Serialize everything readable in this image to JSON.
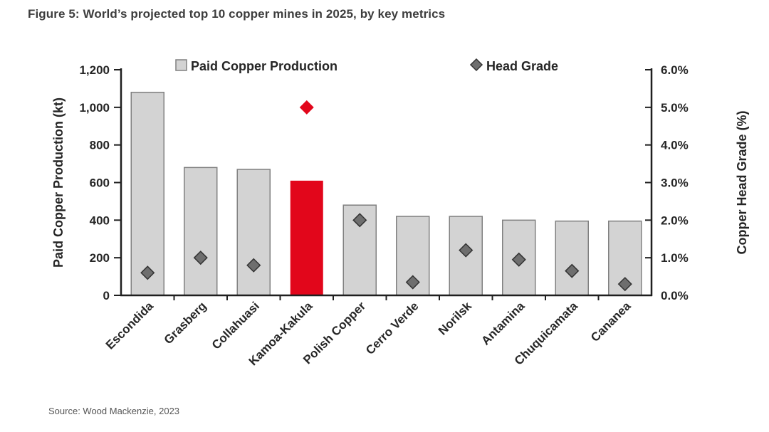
{
  "figure": {
    "title": "Figure 5: World’s projected top 10 copper mines in 2025, by key metrics",
    "source": "Source: Wood Mackenzie, 2023"
  },
  "legend": [
    {
      "label": "Paid Copper Production",
      "marker": "square-icon"
    },
    {
      "label": "Head Grade",
      "marker": "diamond-icon"
    }
  ],
  "colors": {
    "bar_fill": "#d3d3d3",
    "bar_stroke": "#808080",
    "highlight": "#e2061b",
    "marker_fill": "#6e6e6e",
    "marker_stroke": "#333333",
    "axis_line": "#1f1f1f",
    "text": "#262626"
  },
  "chart_data": {
    "type": "bar",
    "subtype": "bar+scatter combo, dual axis",
    "categories": [
      "Escondida",
      "Grasberg",
      "Collahuasi",
      "Kamoa-Kakula",
      "Polish Copper",
      "Cerro Verde",
      "Norilsk",
      "Antamina",
      "Chuquicamata",
      "Cananea"
    ],
    "series": [
      {
        "name": "Paid Copper Production",
        "type": "bar",
        "axis": "left",
        "unit": "kt",
        "values": [
          1080,
          680,
          670,
          610,
          480,
          420,
          420,
          400,
          395,
          395
        ]
      },
      {
        "name": "Head Grade",
        "type": "scatter",
        "marker": "diamond",
        "axis": "right",
        "unit": "%",
        "values": [
          0.6,
          1.0,
          0.8,
          5.0,
          2.0,
          0.35,
          1.2,
          0.95,
          0.65,
          0.3
        ]
      }
    ],
    "highlight": {
      "category": "Kamoa-Kakula",
      "index": 3,
      "color": "#e2061b"
    },
    "left_axis": {
      "label": "Paid Copper Production (kt)",
      "min": 0,
      "max": 1200,
      "step": 200,
      "ticks": [
        "0",
        "200",
        "400",
        "600",
        "800",
        "1,000",
        "1,200"
      ]
    },
    "right_axis": {
      "label": "Copper Head Grade (%)",
      "min": 0,
      "max": 6,
      "step": 1,
      "ticks": [
        "0.0%",
        "1.0%",
        "2.0%",
        "3.0%",
        "4.0%",
        "5.0%",
        "6.0%"
      ]
    },
    "grid": false,
    "legend_position": "top-inside",
    "x_label_rotation_deg": 45
  }
}
